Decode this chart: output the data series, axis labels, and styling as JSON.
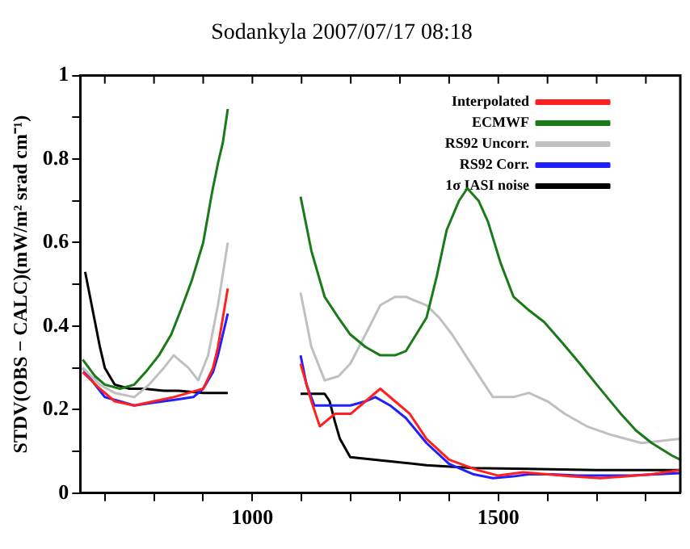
{
  "chart_data": {
    "type": "line",
    "title": "Sodankyla 2007/07/17 08:18",
    "ylabel": "STDV(OBS − CALC)(mW/m² srad cm⁻¹)",
    "xlim": [
      650,
      1870
    ],
    "xticks": [
      {
        "value": 700,
        "label": null
      },
      {
        "value": 800,
        "label": null
      },
      {
        "value": 900,
        "label": null
      },
      1000,
      {
        "value": 1100,
        "label": null
      },
      {
        "value": 1200,
        "label": null
      },
      {
        "value": 1300,
        "label": null
      },
      {
        "value": 1400,
        "label": null
      },
      1500,
      {
        "value": 1600,
        "label": null
      },
      {
        "value": 1700,
        "label": null
      },
      {
        "value": 1800,
        "label": null
      }
    ],
    "ylim": [
      0,
      1
    ],
    "yticks": [
      0,
      {
        "value": 0.1,
        "label": null
      },
      0.2,
      {
        "value": 0.3,
        "label": null
      },
      0.4,
      {
        "value": 0.5,
        "label": null
      },
      0.6,
      {
        "value": 0.7,
        "label": null
      },
      0.8,
      {
        "value": 0.9,
        "label": null
      },
      1
    ],
    "grid": false,
    "legend": "top right",
    "marker": "none",
    "line_style": "solid",
    "series": [
      {
        "name": "Interpolated",
        "color": "#ff2020",
        "x": [
          655,
          690,
          720,
          760,
          800,
          840,
          870,
          900,
          920,
          930,
          940,
          950,
          1025,
          1098,
          1120,
          1137,
          1168,
          1200,
          1230,
          1260,
          1290,
          1320,
          1354,
          1400,
          1458,
          1500,
          1550,
          1600,
          1650,
          1707,
          1760,
          1810,
          1870
        ],
        "values": [
          0.29,
          0.25,
          0.22,
          0.21,
          0.22,
          0.23,
          0.24,
          0.25,
          0.3,
          0.35,
          0.42,
          0.49,
          null,
          0.31,
          0.22,
          0.16,
          0.19,
          0.19,
          0.22,
          0.25,
          0.22,
          0.19,
          0.13,
          0.08,
          0.055,
          0.042,
          0.05,
          0.045,
          0.04,
          0.036,
          0.04,
          0.045,
          0.055
        ]
      },
      {
        "name": "ECMWF",
        "color": "#1a7a1a",
        "x": [
          655,
          680,
          700,
          731,
          760,
          783,
          810,
          835,
          855,
          877,
          900,
          918,
          930,
          940,
          950,
          1025,
          1098,
          1120,
          1147,
          1175,
          1199,
          1230,
          1260,
          1290,
          1312,
          1354,
          1375,
          1395,
          1420,
          1437,
          1460,
          1479,
          1505,
          1531,
          1560,
          1593,
          1630,
          1666,
          1700,
          1749,
          1780,
          1812,
          1853,
          1870
        ],
        "values": [
          0.32,
          0.28,
          0.26,
          0.25,
          0.26,
          0.29,
          0.33,
          0.38,
          0.44,
          0.51,
          0.6,
          0.72,
          0.79,
          0.84,
          0.92,
          null,
          0.71,
          0.58,
          0.47,
          0.42,
          0.38,
          0.35,
          0.33,
          0.33,
          0.34,
          0.42,
          0.52,
          0.63,
          0.7,
          0.73,
          0.7,
          0.65,
          0.55,
          0.47,
          0.44,
          0.41,
          0.36,
          0.31,
          0.26,
          0.19,
          0.15,
          0.12,
          0.09,
          0.08
        ]
      },
      {
        "name": "RS92 Uncorr.",
        "color": "#c0c0c0",
        "x": [
          655,
          690,
          720,
          760,
          790,
          820,
          840,
          870,
          890,
          910,
          930,
          950,
          1025,
          1098,
          1120,
          1147,
          1175,
          1199,
          1230,
          1260,
          1290,
          1312,
          1354,
          1380,
          1406,
          1450,
          1489,
          1530,
          1562,
          1600,
          1635,
          1680,
          1728,
          1791,
          1870
        ],
        "values": [
          0.3,
          0.26,
          0.24,
          0.23,
          0.26,
          0.3,
          0.33,
          0.3,
          0.27,
          0.33,
          0.45,
          0.6,
          null,
          0.48,
          0.35,
          0.27,
          0.28,
          0.31,
          0.38,
          0.45,
          0.47,
          0.47,
          0.45,
          0.42,
          0.38,
          0.3,
          0.23,
          0.23,
          0.24,
          0.22,
          0.19,
          0.16,
          0.14,
          0.12,
          0.13
        ]
      },
      {
        "name": "RS92 Corr.",
        "color": "#2020ff",
        "x": [
          655,
          680,
          700,
          730,
          760,
          790,
          820,
          850,
          880,
          900,
          920,
          930,
          940,
          950,
          1025,
          1098,
          1110,
          1126,
          1147,
          1199,
          1230,
          1250,
          1280,
          1312,
          1354,
          1400,
          1450,
          1489,
          1530,
          1562,
          1610,
          1660,
          1707,
          1770,
          1870
        ],
        "values": [
          0.3,
          0.26,
          0.23,
          0.22,
          0.21,
          0.215,
          0.22,
          0.225,
          0.23,
          0.25,
          0.29,
          0.33,
          0.38,
          0.43,
          null,
          0.33,
          0.26,
          0.21,
          0.21,
          0.21,
          0.22,
          0.23,
          0.21,
          0.18,
          0.12,
          0.07,
          0.045,
          0.036,
          0.04,
          0.045,
          0.045,
          0.042,
          0.042,
          0.042,
          0.048
        ]
      },
      {
        "name": "1σ IASI noise",
        "color": "#000000",
        "x": [
          660,
          670,
          680,
          690,
          700,
          720,
          750,
          780,
          820,
          850,
          900,
          950,
          1025,
          1098,
          1147,
          1157,
          1168,
          1178,
          1199,
          1250,
          1354,
          1450,
          1560,
          1700,
          1870
        ],
        "values": [
          0.53,
          0.47,
          0.41,
          0.35,
          0.3,
          0.26,
          0.25,
          0.25,
          0.245,
          0.245,
          0.24,
          0.24,
          null,
          0.238,
          0.238,
          0.22,
          0.17,
          0.13,
          0.086,
          0.08,
          0.067,
          0.06,
          0.058,
          0.055,
          0.055
        ]
      }
    ]
  }
}
